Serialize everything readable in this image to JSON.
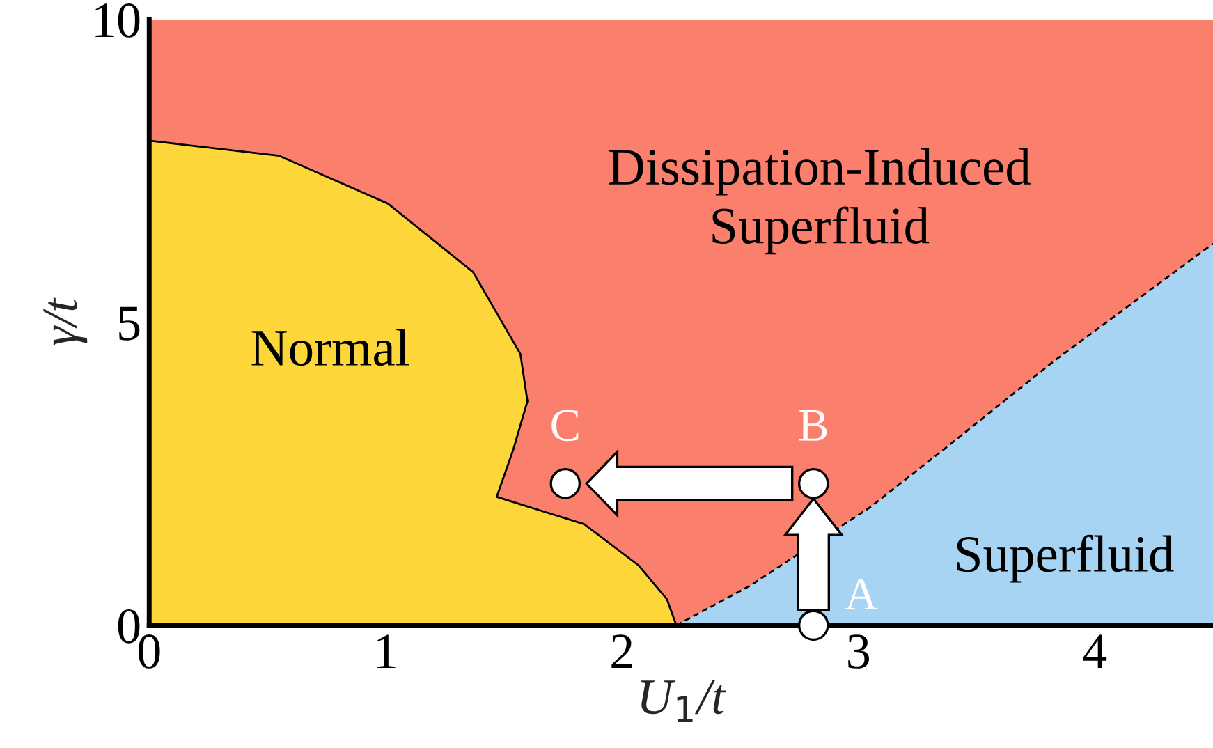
{
  "chart_data": {
    "type": "area",
    "xlabel": "U$_{1}$/t",
    "ylabel": "γ/t",
    "xlim": [
      0,
      4.5
    ],
    "ylim": [
      0,
      10
    ],
    "xticks": [
      0,
      1,
      2,
      3,
      4
    ],
    "yticks": [
      0,
      5,
      10
    ],
    "grid": false,
    "legend": false,
    "series": [
      {
        "color": "#fdd73a",
        "line_style": "solid",
        "x": [
          0,
          0.55,
          1.01,
          1.37,
          1.57,
          1.6,
          1.54,
          1.47,
          1.84,
          2.07,
          2.19,
          2.23
        ],
        "values": [
          8,
          7.75,
          6.96,
          5.83,
          4.48,
          3.7,
          2.9,
          2.12,
          1.67,
          0.99,
          0.43,
          0
        ]
      },
      {
        "color": "#a6d4f2",
        "line_style": "dashed",
        "x": [
          2.23,
          2.54,
          3.05,
          3.36,
          3.83,
          4.5
        ],
        "values": [
          0,
          0.65,
          1.95,
          2.9,
          4.37,
          6.3
        ]
      },
      {
        "type": "scatter",
        "color": "#ffffff",
        "marker": "circle",
        "x": [
          2.81,
          2.81,
          1.76
        ],
        "values": [
          0,
          2.34,
          2.34
        ],
        "value_labels": [
          "A",
          "B",
          "C"
        ]
      }
    ],
    "annotations": [
      "Normal",
      "Dissipation-Induced\nSuperfluid",
      "Superfluid"
    ]
  }
}
